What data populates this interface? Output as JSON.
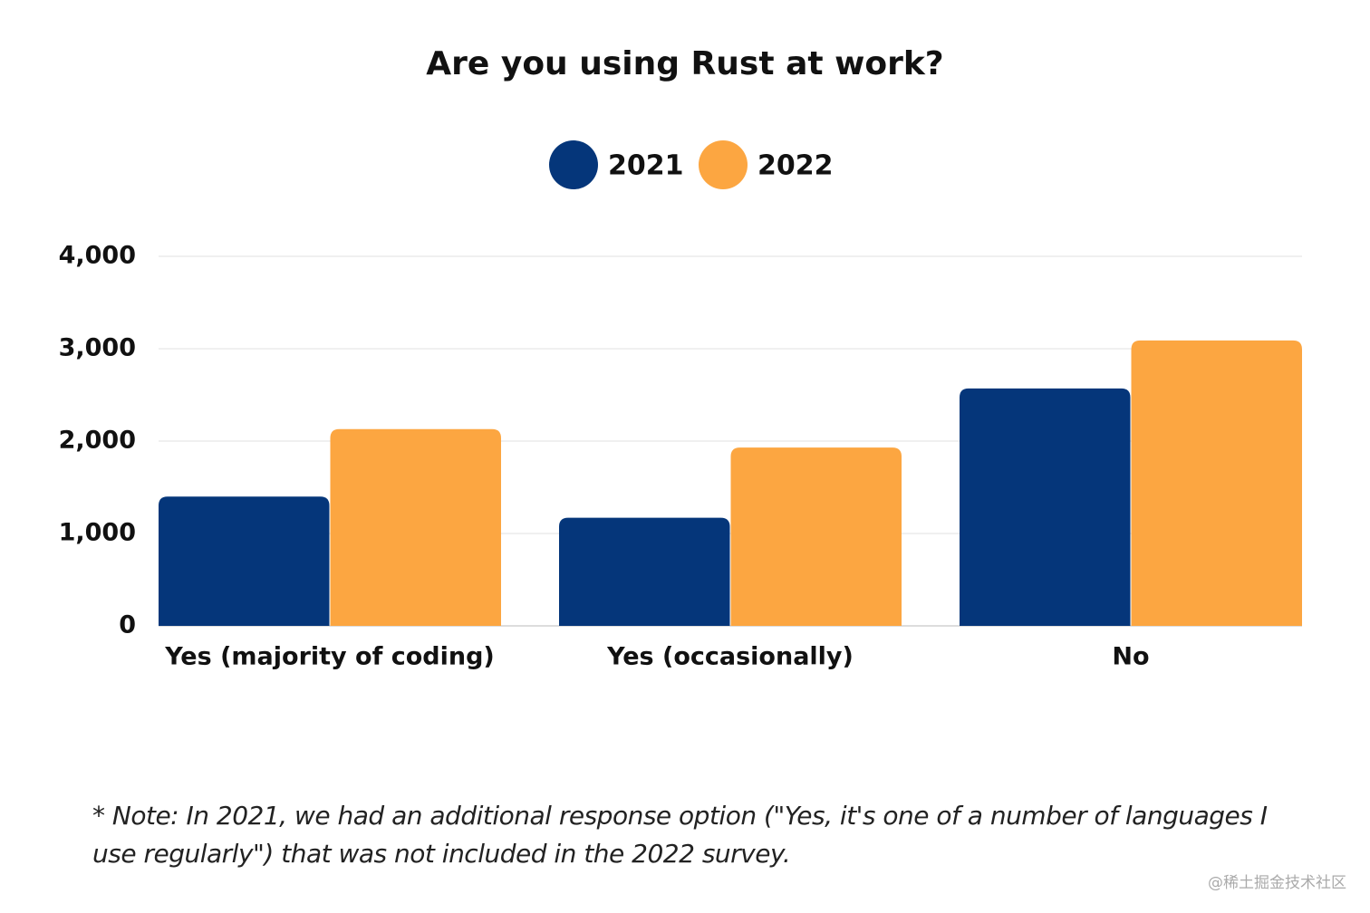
{
  "chart_data": {
    "type": "bar",
    "title": "Are you using Rust at work?",
    "categories": [
      "Yes (majority of coding)",
      "Yes (occasionally)",
      "No"
    ],
    "series": [
      {
        "name": "2021",
        "color": "#05367a",
        "values": [
          1400,
          1170,
          2570
        ]
      },
      {
        "name": "2022",
        "color": "#fca641",
        "values": [
          2130,
          1930,
          3090
        ]
      }
    ],
    "ylim": [
      0,
      4000
    ],
    "yticks": [
      0,
      {
        "value": 1000,
        "label": "1,000"
      },
      {
        "value": 2000,
        "label": "2,000"
      },
      {
        "value": 3000,
        "label": "3,000"
      },
      {
        "value": 4000,
        "label": "4,000"
      }
    ],
    "grid": true,
    "legend": "top",
    "note": "* Note: In 2021, we had an additional response option (\"Yes, it's one of a number of languages I use regularly\") that was not included in the 2022 survey.",
    "watermark": "@稀土掘金技术社区"
  }
}
